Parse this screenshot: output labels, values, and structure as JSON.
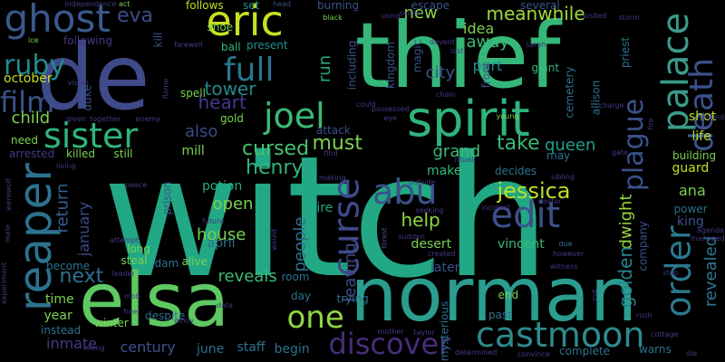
{
  "words": [
    {
      "text": "witch",
      "color": "#22a884"
    },
    {
      "text": "thief",
      "color": "#35b779"
    },
    {
      "text": "de",
      "color": "#3e4a89"
    },
    {
      "text": "norman",
      "color": "#2a9d8f"
    },
    {
      "text": "elsa",
      "color": "#5ec962"
    },
    {
      "text": "spirit",
      "color": "#2fb47c"
    },
    {
      "text": "reaper",
      "color": "#2c728e"
    },
    {
      "text": "eric",
      "color": "#c8e020"
    },
    {
      "text": "palace",
      "color": "#3a9b89"
    },
    {
      "text": "death",
      "color": "#3b518b"
    },
    {
      "text": "ghost",
      "color": "#38598c"
    },
    {
      "text": "castmoon",
      "color": "#2e8a8c"
    },
    {
      "text": "joel",
      "color": "#3aba76"
    },
    {
      "text": "discover",
      "color": "#472d7b"
    },
    {
      "text": "curse",
      "color": "#3e4989"
    },
    {
      "text": "sister",
      "color": "#2fb47c"
    },
    {
      "text": "order",
      "color": "#2a788e"
    },
    {
      "text": "abu",
      "color": "#3b528b"
    },
    {
      "text": "edit",
      "color": "#3c4f8a"
    },
    {
      "text": "full",
      "color": "#2a778e"
    },
    {
      "text": "film",
      "color": "#3b528b"
    },
    {
      "text": "ruby",
      "color": "#23898e"
    },
    {
      "text": "plague",
      "color": "#3b518b"
    },
    {
      "text": "one",
      "color": "#8fd744"
    },
    {
      "text": "tower",
      "color": "#23888e"
    },
    {
      "text": "heart",
      "color": "#44398e"
    },
    {
      "text": "jessica",
      "color": "#bddf26"
    },
    {
      "text": "eva",
      "color": "#3e4c8a"
    },
    {
      "text": "new",
      "color": "#8ed645"
    },
    {
      "text": "meanwhile",
      "color": "#a0da39"
    },
    {
      "text": "henry",
      "color": "#2fb47c"
    },
    {
      "text": "cursed",
      "color": "#46c06f"
    },
    {
      "text": "grand",
      "color": "#3aba76"
    },
    {
      "text": "take",
      "color": "#3aba76"
    },
    {
      "text": "must",
      "color": "#7ad151"
    },
    {
      "text": "also",
      "color": "#3e4989"
    },
    {
      "text": "child",
      "color": "#7ad151"
    },
    {
      "text": "open",
      "color": "#7ad151"
    },
    {
      "text": "house",
      "color": "#7ad151"
    },
    {
      "text": "reveals",
      "color": "#3aba76"
    },
    {
      "text": "next",
      "color": "#2c718e"
    },
    {
      "text": "people",
      "color": "#2e6f8e"
    },
    {
      "text": "leaving",
      "color": "#3e4a89"
    },
    {
      "text": "help",
      "color": "#8ed645"
    },
    {
      "text": "dwight",
      "color": "#98d83e"
    },
    {
      "text": "golden",
      "color": "#25848e"
    },
    {
      "text": "revealed",
      "color": "#2a788e"
    },
    {
      "text": "run",
      "color": "#22a884"
    },
    {
      "text": "away",
      "color": "#3aba76"
    },
    {
      "text": "part",
      "color": "#21908d"
    },
    {
      "text": "city",
      "color": "#3b518b"
    },
    {
      "text": "idea",
      "color": "#7ad151"
    },
    {
      "text": "queen",
      "color": "#1f9e89"
    },
    {
      "text": "return",
      "color": "#355f8d"
    },
    {
      "text": "ana",
      "color": "#7ad151"
    },
    {
      "text": "king",
      "color": "#3b528b"
    },
    {
      "text": "life",
      "color": "#bddf26"
    },
    {
      "text": "shot",
      "color": "#bddf26"
    },
    {
      "text": "guard",
      "color": "#c2df23"
    },
    {
      "text": "inmate",
      "color": "#443983"
    },
    {
      "text": "century",
      "color": "#3b528b"
    },
    {
      "text": "staff",
      "color": "#2c728e"
    },
    {
      "text": "year",
      "color": "#7ad151"
    },
    {
      "text": "time",
      "color": "#7ad151"
    },
    {
      "text": "desert",
      "color": "#7ad151"
    },
    {
      "text": "january",
      "color": "#3e4989"
    },
    {
      "text": "october",
      "color": "#c2df23"
    },
    {
      "text": "mill",
      "color": "#7ad151"
    },
    {
      "text": "potion",
      "color": "#22a884"
    },
    {
      "text": "april",
      "color": "#2c728e"
    },
    {
      "text": "june",
      "color": "#2c728e"
    },
    {
      "text": "begin",
      "color": "#2c728e"
    },
    {
      "text": "later",
      "color": "#3b528b"
    },
    {
      "text": "vincent",
      "color": "#3aba76"
    },
    {
      "text": "make",
      "color": "#35b779"
    },
    {
      "text": "hire",
      "color": "#22a884"
    },
    {
      "text": "need",
      "color": "#7ad151"
    },
    {
      "text": "follows",
      "color": "#c2df23"
    },
    {
      "text": "following",
      "color": "#443983"
    },
    {
      "text": "kingdom",
      "color": "#3b528b"
    },
    {
      "text": "magic",
      "color": "#3b528b"
    },
    {
      "text": "including",
      "color": "#3b528b"
    },
    {
      "text": "cemetery",
      "color": "#2c728e"
    },
    {
      "text": "allison",
      "color": "#2c728e"
    },
    {
      "text": "priest",
      "color": "#2c728e"
    },
    {
      "text": "giant",
      "color": "#35b779"
    },
    {
      "text": "ball",
      "color": "#35b779"
    },
    {
      "text": "present",
      "color": "#21908d"
    },
    {
      "text": "set",
      "color": "#21908d"
    },
    {
      "text": "attack",
      "color": "#3b528b"
    },
    {
      "text": "decides",
      "color": "#2c728e"
    },
    {
      "text": "may",
      "color": "#2c728e"
    },
    {
      "text": "power",
      "color": "#2c728e"
    },
    {
      "text": "building",
      "color": "#7ad151"
    },
    {
      "text": "company",
      "color": "#3b528b"
    },
    {
      "text": "front",
      "color": "#3b528b"
    },
    {
      "text": "several",
      "color": "#3b528b"
    },
    {
      "text": "burning",
      "color": "#3b528b"
    },
    {
      "text": "escape",
      "color": "#3b528b"
    },
    {
      "text": "room",
      "color": "#2c728e"
    },
    {
      "text": "dam",
      "color": "#2c728e"
    },
    {
      "text": "despite",
      "color": "#2c728e"
    },
    {
      "text": "winter",
      "color": "#7ad151"
    },
    {
      "text": "end",
      "color": "#7ad151"
    },
    {
      "text": "past",
      "color": "#2c728e"
    },
    {
      "text": "complete",
      "color": "#2c728e"
    },
    {
      "text": "warns",
      "color": "#2c728e"
    },
    {
      "text": "prison",
      "color": "#3b528b"
    },
    {
      "text": "alive",
      "color": "#7ad151"
    },
    {
      "text": "long",
      "color": "#7ad151"
    },
    {
      "text": "steal",
      "color": "#7ad151"
    },
    {
      "text": "become",
      "color": "#2c728e"
    },
    {
      "text": "instead",
      "color": "#2c728e"
    },
    {
      "text": "mysterious",
      "color": "#2c728e"
    },
    {
      "text": "trying",
      "color": "#2c728e"
    },
    {
      "text": "day",
      "color": "#2c728e"
    },
    {
      "text": "killed",
      "color": "#7ad151"
    },
    {
      "text": "still",
      "color": "#7ad151"
    },
    {
      "text": "spell",
      "color": "#7ad151"
    },
    {
      "text": "gold",
      "color": "#7ad151"
    },
    {
      "text": "duke",
      "color": "#3b528b"
    },
    {
      "text": "kill",
      "color": "#3b528b"
    },
    {
      "text": "shoe",
      "color": "#7ad151"
    },
    {
      "text": "farewell",
      "color": "#443983"
    },
    {
      "text": "ice",
      "color": "#7ad151"
    },
    {
      "text": "act",
      "color": "#7ad151"
    },
    {
      "text": "independence",
      "color": "#443983"
    },
    {
      "text": "head",
      "color": "#3b528b"
    },
    {
      "text": "black",
      "color": "#7ad151"
    },
    {
      "text": "using",
      "color": "#443983"
    },
    {
      "text": "visited",
      "color": "#443983"
    },
    {
      "text": "storm",
      "color": "#443983"
    },
    {
      "text": "sarah",
      "color": "#443983"
    },
    {
      "text": "devent",
      "color": "#443983"
    },
    {
      "text": "lost",
      "color": "#443983"
    },
    {
      "text": "could",
      "color": "#443983"
    },
    {
      "text": "young",
      "color": "#7ad151"
    },
    {
      "text": "charge",
      "color": "#443983"
    },
    {
      "text": "fire",
      "color": "#443983"
    },
    {
      "text": "ground",
      "color": "#443983"
    },
    {
      "text": "chain",
      "color": "#443983"
    },
    {
      "text": "possessed",
      "color": "#443983"
    },
    {
      "text": "eye",
      "color": "#443983"
    },
    {
      "text": "find",
      "color": "#443983"
    },
    {
      "text": "ritual",
      "color": "#443983"
    },
    {
      "text": "making",
      "color": "#443983"
    },
    {
      "text": "sibling",
      "color": "#443983"
    },
    {
      "text": "gate",
      "color": "#443983"
    },
    {
      "text": "outside",
      "color": "#443983"
    },
    {
      "text": "doctor",
      "color": "#443983"
    },
    {
      "text": "incident",
      "color": "#443983"
    },
    {
      "text": "seeking",
      "color": "#443983"
    },
    {
      "text": "sudden",
      "color": "#443983"
    },
    {
      "text": "forest",
      "color": "#3b528b"
    },
    {
      "text": "agenda",
      "color": "#443983"
    },
    {
      "text": "managed",
      "color": "#443983"
    },
    {
      "text": "created",
      "color": "#443983"
    },
    {
      "text": "however",
      "color": "#443983"
    },
    {
      "text": "witness",
      "color": "#443983"
    },
    {
      "text": "due",
      "color": "#2c728e"
    },
    {
      "text": "stop",
      "color": "#443983"
    },
    {
      "text": "would",
      "color": "#443983"
    },
    {
      "text": "future",
      "color": "#443983"
    },
    {
      "text": "attempt",
      "color": "#443983"
    },
    {
      "text": "leader",
      "color": "#443983"
    },
    {
      "text": "mob",
      "color": "#443983"
    },
    {
      "text": "free",
      "color": "#443983"
    },
    {
      "text": "emily",
      "color": "#443983"
    },
    {
      "text": "data",
      "color": "#443983"
    },
    {
      "text": "cut",
      "color": "#443983"
    },
    {
      "text": "rush",
      "color": "#443983"
    },
    {
      "text": "cottage",
      "color": "#443983"
    },
    {
      "text": "die",
      "color": "#443983"
    },
    {
      "text": "killing",
      "color": "#443983"
    },
    {
      "text": "mother",
      "color": "#443983"
    },
    {
      "text": "taylor",
      "color": "#443983"
    },
    {
      "text": "determined",
      "color": "#443983"
    },
    {
      "text": "convince",
      "color": "#443983"
    },
    {
      "text": "soldier",
      "color": "#443983"
    },
    {
      "text": "vision",
      "color": "#443983"
    },
    {
      "text": "flame",
      "color": "#443983"
    },
    {
      "text": "given",
      "color": "#443983"
    },
    {
      "text": "together",
      "color": "#443983"
    },
    {
      "text": "enemy",
      "color": "#443983"
    },
    {
      "text": "living",
      "color": "#443983"
    },
    {
      "text": "werewolf",
      "color": "#443983"
    },
    {
      "text": "male",
      "color": "#443983"
    },
    {
      "text": "experiment",
      "color": "#443983"
    },
    {
      "text": "peace",
      "color": "#443983"
    },
    {
      "text": "arrested",
      "color": "#443983"
    },
    {
      "text": "trap",
      "color": "#443983"
    },
    {
      "text": "th",
      "color": "#7ad151"
    }
  ]
}
